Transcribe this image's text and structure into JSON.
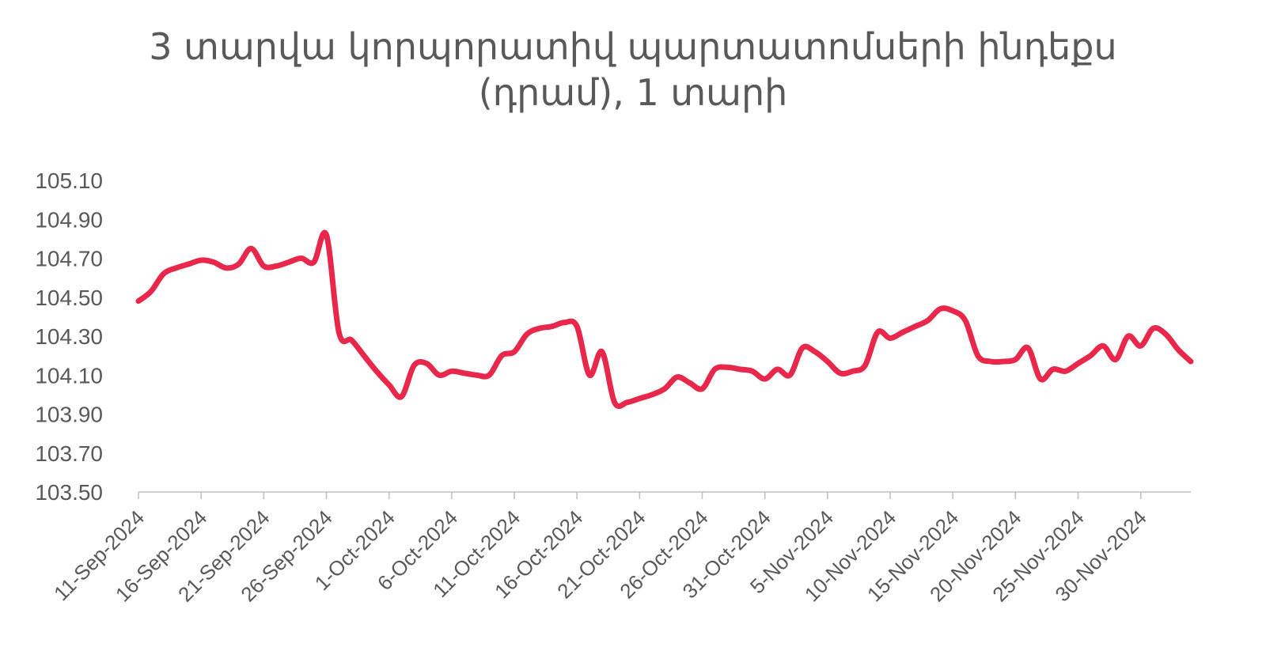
{
  "chart_data": {
    "type": "line",
    "title_lines": [
      "3 տարվա կորպորատիվ պարտատոմսերի ինդեքս",
      "(դրամ), 1 տարի"
    ],
    "xlabel": "",
    "ylabel": "",
    "ylim": [
      103.5,
      105.1
    ],
    "y_ticks": [
      "103.50",
      "103.70",
      "103.90",
      "104.10",
      "104.30",
      "104.50",
      "104.70",
      "104.90",
      "105.10"
    ],
    "x_tick_labels": [
      "11-Sep-2024",
      "16-Sep-2024",
      "21-Sep-2024",
      "26-Sep-2024",
      "1-Oct-2024",
      "6-Oct-2024",
      "11-Oct-2024",
      "16-Oct-2024",
      "21-Oct-2024",
      "26-Oct-2024",
      "31-Oct-2024",
      "5-Nov-2024",
      "10-Nov-2024",
      "15-Nov-2024",
      "20-Nov-2024",
      "25-Nov-2024",
      "30-Nov-2024"
    ],
    "x_range": [
      "11-Sep-2024",
      "4-Dec-2024"
    ],
    "grid": false,
    "line_color": "#E8274B",
    "series": [
      {
        "x": [
          "11-Sep-2024",
          "12-Sep-2024",
          "13-Sep-2024",
          "14-Sep-2024",
          "15-Sep-2024",
          "16-Sep-2024",
          "17-Sep-2024",
          "18-Sep-2024",
          "19-Sep-2024",
          "20-Sep-2024",
          "21-Sep-2024",
          "22-Sep-2024",
          "23-Sep-2024",
          "24-Sep-2024",
          "25-Sep-2024",
          "26-Sep-2024",
          "27-Sep-2024",
          "28-Sep-2024",
          "29-Sep-2024",
          "30-Sep-2024",
          "1-Oct-2024",
          "2-Oct-2024",
          "3-Oct-2024",
          "4-Oct-2024",
          "5-Oct-2024",
          "6-Oct-2024",
          "7-Oct-2024",
          "8-Oct-2024",
          "9-Oct-2024",
          "10-Oct-2024",
          "11-Oct-2024",
          "12-Oct-2024",
          "13-Oct-2024",
          "14-Oct-2024",
          "15-Oct-2024",
          "16-Oct-2024",
          "17-Oct-2024",
          "18-Oct-2024",
          "19-Oct-2024",
          "20-Oct-2024",
          "21-Oct-2024",
          "22-Oct-2024",
          "23-Oct-2024",
          "24-Oct-2024",
          "25-Oct-2024",
          "26-Oct-2024",
          "27-Oct-2024",
          "28-Oct-2024",
          "29-Oct-2024",
          "30-Oct-2024",
          "31-Oct-2024",
          "1-Nov-2024",
          "2-Nov-2024",
          "3-Nov-2024",
          "4-Nov-2024",
          "5-Nov-2024",
          "6-Nov-2024",
          "7-Nov-2024",
          "8-Nov-2024",
          "9-Nov-2024",
          "10-Nov-2024",
          "11-Nov-2024",
          "12-Nov-2024",
          "13-Nov-2024",
          "14-Nov-2024",
          "15-Nov-2024",
          "16-Nov-2024",
          "17-Nov-2024",
          "18-Nov-2024",
          "19-Nov-2024",
          "20-Nov-2024",
          "21-Nov-2024",
          "22-Nov-2024",
          "23-Nov-2024",
          "24-Nov-2024",
          "25-Nov-2024",
          "26-Nov-2024",
          "27-Nov-2024",
          "28-Nov-2024",
          "29-Nov-2024",
          "30-Nov-2024",
          "1-Dec-2024",
          "2-Dec-2024",
          "3-Dec-2024",
          "4-Dec-2024"
        ],
        "values": [
          104.48,
          104.53,
          104.62,
          104.65,
          104.67,
          104.69,
          104.68,
          104.65,
          104.67,
          104.75,
          104.66,
          104.66,
          104.68,
          104.7,
          104.68,
          104.82,
          104.32,
          104.28,
          104.2,
          104.12,
          104.05,
          103.99,
          104.15,
          104.16,
          104.1,
          104.12,
          104.11,
          104.1,
          104.1,
          104.2,
          104.22,
          104.31,
          104.34,
          104.35,
          104.37,
          104.35,
          104.1,
          104.22,
          103.96,
          103.96,
          103.98,
          104.0,
          104.03,
          104.09,
          104.06,
          104.03,
          104.13,
          104.14,
          104.13,
          104.12,
          104.08,
          104.13,
          104.1,
          104.24,
          104.22,
          104.17,
          104.11,
          104.12,
          104.15,
          104.32,
          104.29,
          104.32,
          104.35,
          104.38,
          104.44,
          104.43,
          104.38,
          104.2,
          104.17,
          104.17,
          104.18,
          104.24,
          104.08,
          104.13,
          104.12,
          104.16,
          104.2,
          104.25,
          104.18,
          104.3,
          104.25,
          104.34,
          104.31,
          104.23,
          104.17
        ]
      }
    ]
  }
}
